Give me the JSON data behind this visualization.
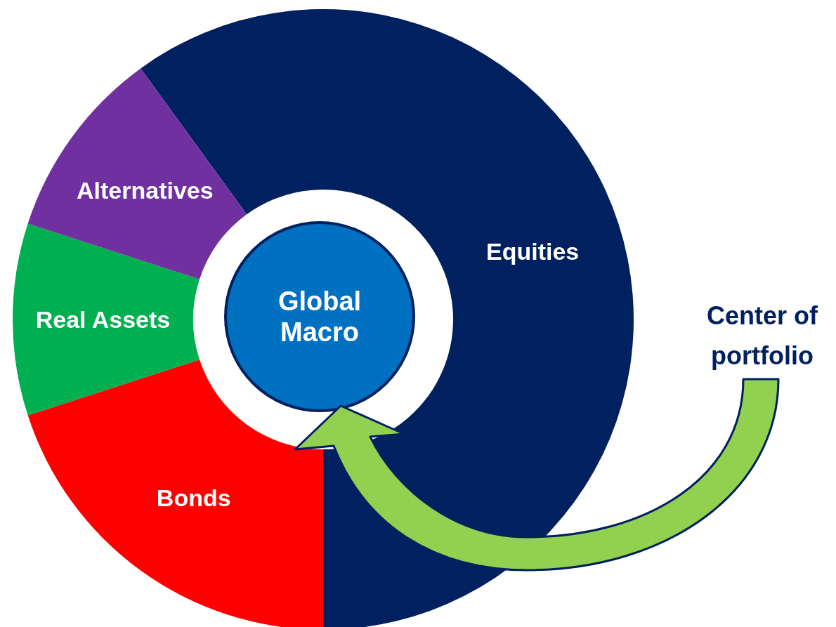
{
  "chart_data": {
    "type": "donut",
    "categories": [
      "Equities",
      "Bonds",
      "Real Assets",
      "Alternatives"
    ],
    "values": [
      60,
      20,
      10,
      10
    ],
    "colors": [
      "#002060",
      "#ff0000",
      "#00b050",
      "#7030a0"
    ],
    "annotations": [
      "Global Macro",
      "Center of portfolio"
    ]
  }
}
